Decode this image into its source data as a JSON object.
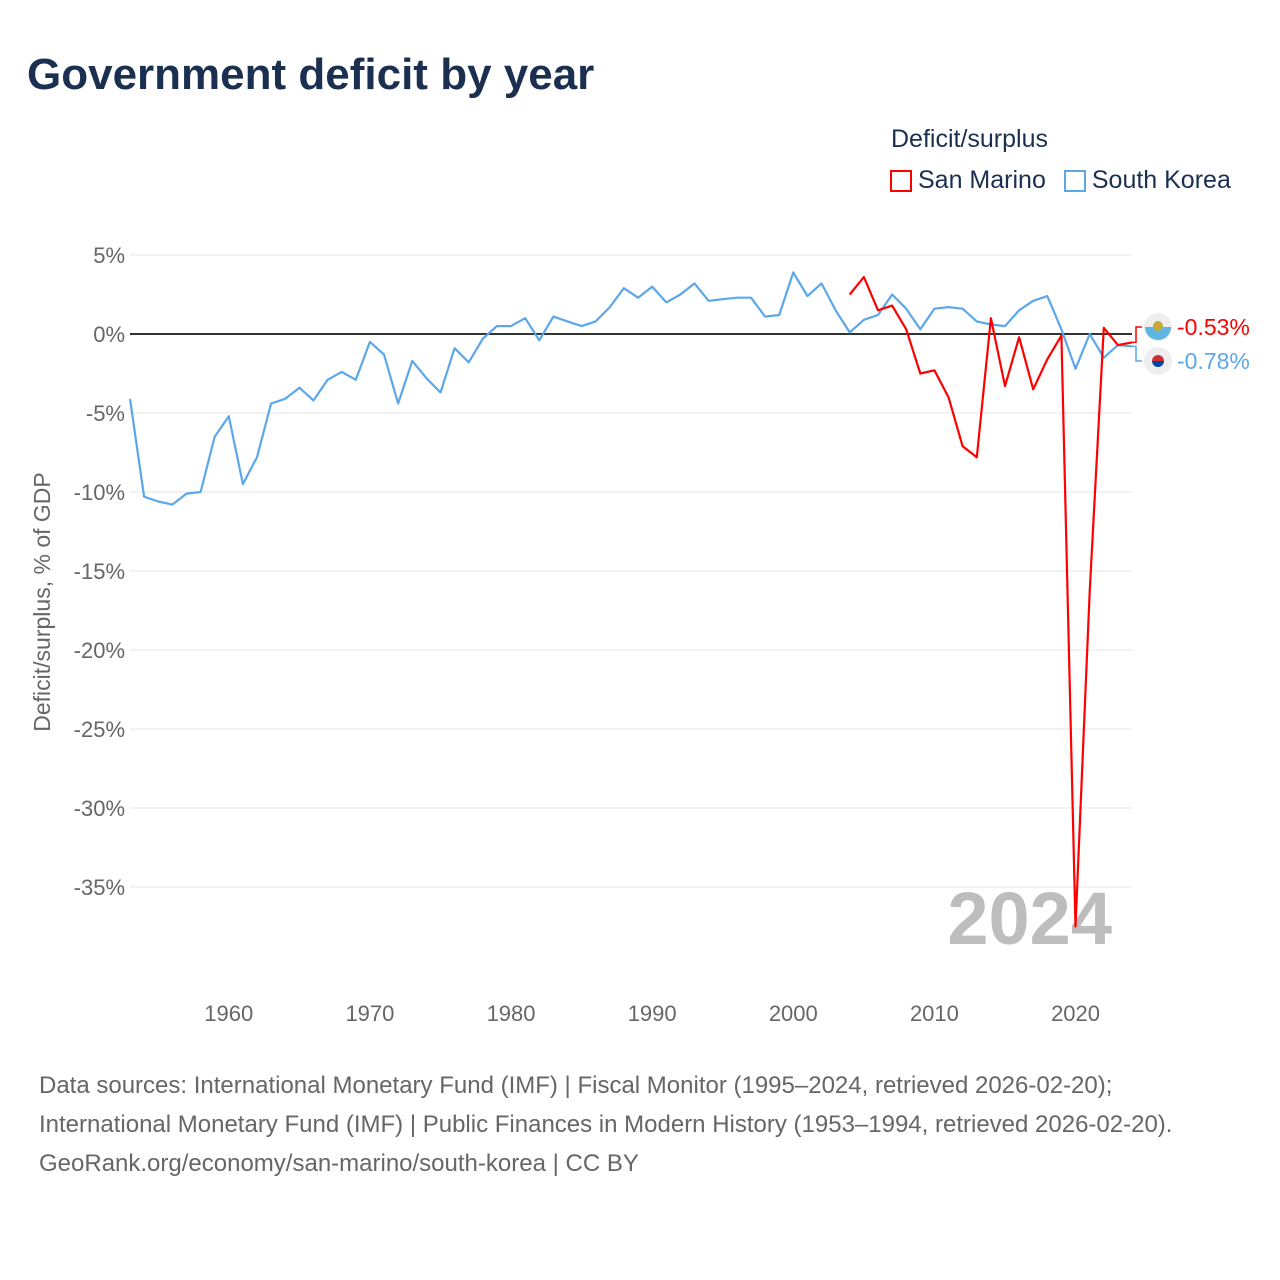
{
  "title": "Government deficit by year",
  "legend": {
    "title": "Deficit/surplus",
    "items": [
      {
        "name": "San Marino",
        "color": "#ff0000"
      },
      {
        "name": "South Korea",
        "color": "#5ba7ea"
      }
    ]
  },
  "footer": {
    "sources": "Data sources: International Monetary Fund (IMF) | Fiscal Monitor (1995–2024, retrieved 2026-02-20); International Monetary Fund (IMF) | Public Finances in Modern History (1953–1994, retrieved 2026-02-20).",
    "credit": "GeoRank.org/economy/san-marino/south-korea | CC BY"
  },
  "chart_data": {
    "type": "line",
    "title": "Government deficit by year",
    "ylabel": "Deficit/surplus, % of GDP",
    "xlabel": "",
    "xlim": [
      1953,
      2024
    ],
    "ylim": [
      -40,
      5
    ],
    "yticks": [
      5,
      0,
      -5,
      -10,
      -15,
      -20,
      -25,
      -30,
      -35
    ],
    "ytick_labels": [
      "5%",
      "0%",
      "-5%",
      "-10%",
      "-15%",
      "-20%",
      "-25%",
      "-30%",
      "-35%"
    ],
    "xticks": [
      1960,
      1970,
      1980,
      1990,
      2000,
      2010,
      2020
    ],
    "xtick_labels": [
      "1960",
      "1970",
      "1980",
      "1990",
      "2000",
      "2010",
      "2020"
    ],
    "current_year_label": "2024",
    "grid": true,
    "legend_position": "top-right",
    "series": [
      {
        "name": "South Korea",
        "color": "#5ba7ea",
        "end_label": "-0.78%",
        "x": [
          1953,
          1954,
          1955,
          1956,
          1957,
          1958,
          1959,
          1960,
          1961,
          1962,
          1963,
          1964,
          1965,
          1966,
          1967,
          1968,
          1969,
          1970,
          1971,
          1972,
          1973,
          1974,
          1975,
          1976,
          1977,
          1978,
          1979,
          1980,
          1981,
          1982,
          1983,
          1984,
          1985,
          1986,
          1987,
          1988,
          1989,
          1990,
          1991,
          1992,
          1993,
          1994,
          1995,
          1996,
          1997,
          1998,
          1999,
          2000,
          2001,
          2002,
          2003,
          2004,
          2005,
          2006,
          2007,
          2008,
          2009,
          2010,
          2011,
          2012,
          2013,
          2014,
          2015,
          2016,
          2017,
          2018,
          2019,
          2020,
          2021,
          2022,
          2023,
          2024
        ],
        "values": [
          -4.1,
          -10.3,
          -10.6,
          -10.8,
          -10.1,
          -10.0,
          -6.5,
          -5.2,
          -9.5,
          -7.8,
          -4.4,
          -4.1,
          -3.4,
          -4.2,
          -2.9,
          -2.4,
          -2.9,
          -0.5,
          -1.3,
          -4.4,
          -1.7,
          -2.8,
          -3.7,
          -0.9,
          -1.8,
          -0.3,
          0.5,
          0.5,
          1.0,
          -0.4,
          1.1,
          0.8,
          0.5,
          0.8,
          1.7,
          2.9,
          2.3,
          3.0,
          2.0,
          2.5,
          3.2,
          2.1,
          2.2,
          2.3,
          2.3,
          1.1,
          1.2,
          3.9,
          2.4,
          3.2,
          1.5,
          0.1,
          0.9,
          1.2,
          2.5,
          1.6,
          0.3,
          1.6,
          1.7,
          1.6,
          0.8,
          0.6,
          0.5,
          1.5,
          2.1,
          2.4,
          0.3,
          -2.2,
          0.0,
          -1.5,
          -0.7,
          -0.78
        ]
      },
      {
        "name": "San Marino",
        "color": "#ff0000",
        "end_label": "-0.53%",
        "x": [
          2004,
          2005,
          2006,
          2007,
          2008,
          2009,
          2010,
          2011,
          2012,
          2013,
          2014,
          2015,
          2016,
          2017,
          2018,
          2019,
          2020,
          2021,
          2022,
          2023,
          2024
        ],
        "values": [
          2.5,
          3.6,
          1.5,
          1.8,
          0.3,
          -2.5,
          -2.3,
          -4.0,
          -7.1,
          -7.8,
          1.0,
          -3.3,
          -0.2,
          -3.5,
          -1.6,
          -0.1,
          -37.5,
          -16.3,
          0.4,
          -0.7,
          -0.53
        ]
      }
    ]
  }
}
